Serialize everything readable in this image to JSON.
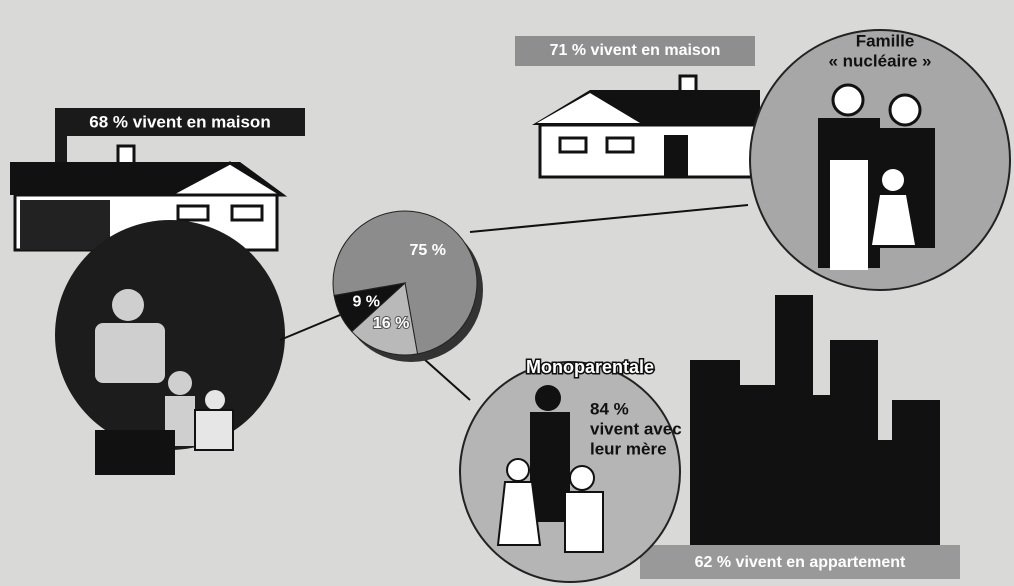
{
  "chart_data": {
    "type": "pie",
    "values": [
      75,
      16,
      9
    ],
    "value_labels": [
      "75 %",
      "16 %",
      "9 %"
    ],
    "colors": [
      "#8c8c8c",
      "#b9b9b9",
      "#111111"
    ],
    "annotations": {
      "left_house": "68 % vivent en maison",
      "right_house": "71 % vivent en maison",
      "nuclear_family": [
        "Famille",
        "« nucléaire »"
      ],
      "single_parent": "Monoparentale",
      "mother": [
        "84 %",
        "vivent avec",
        "leur mère"
      ],
      "apartment": "62 % vivent en appartement"
    }
  }
}
